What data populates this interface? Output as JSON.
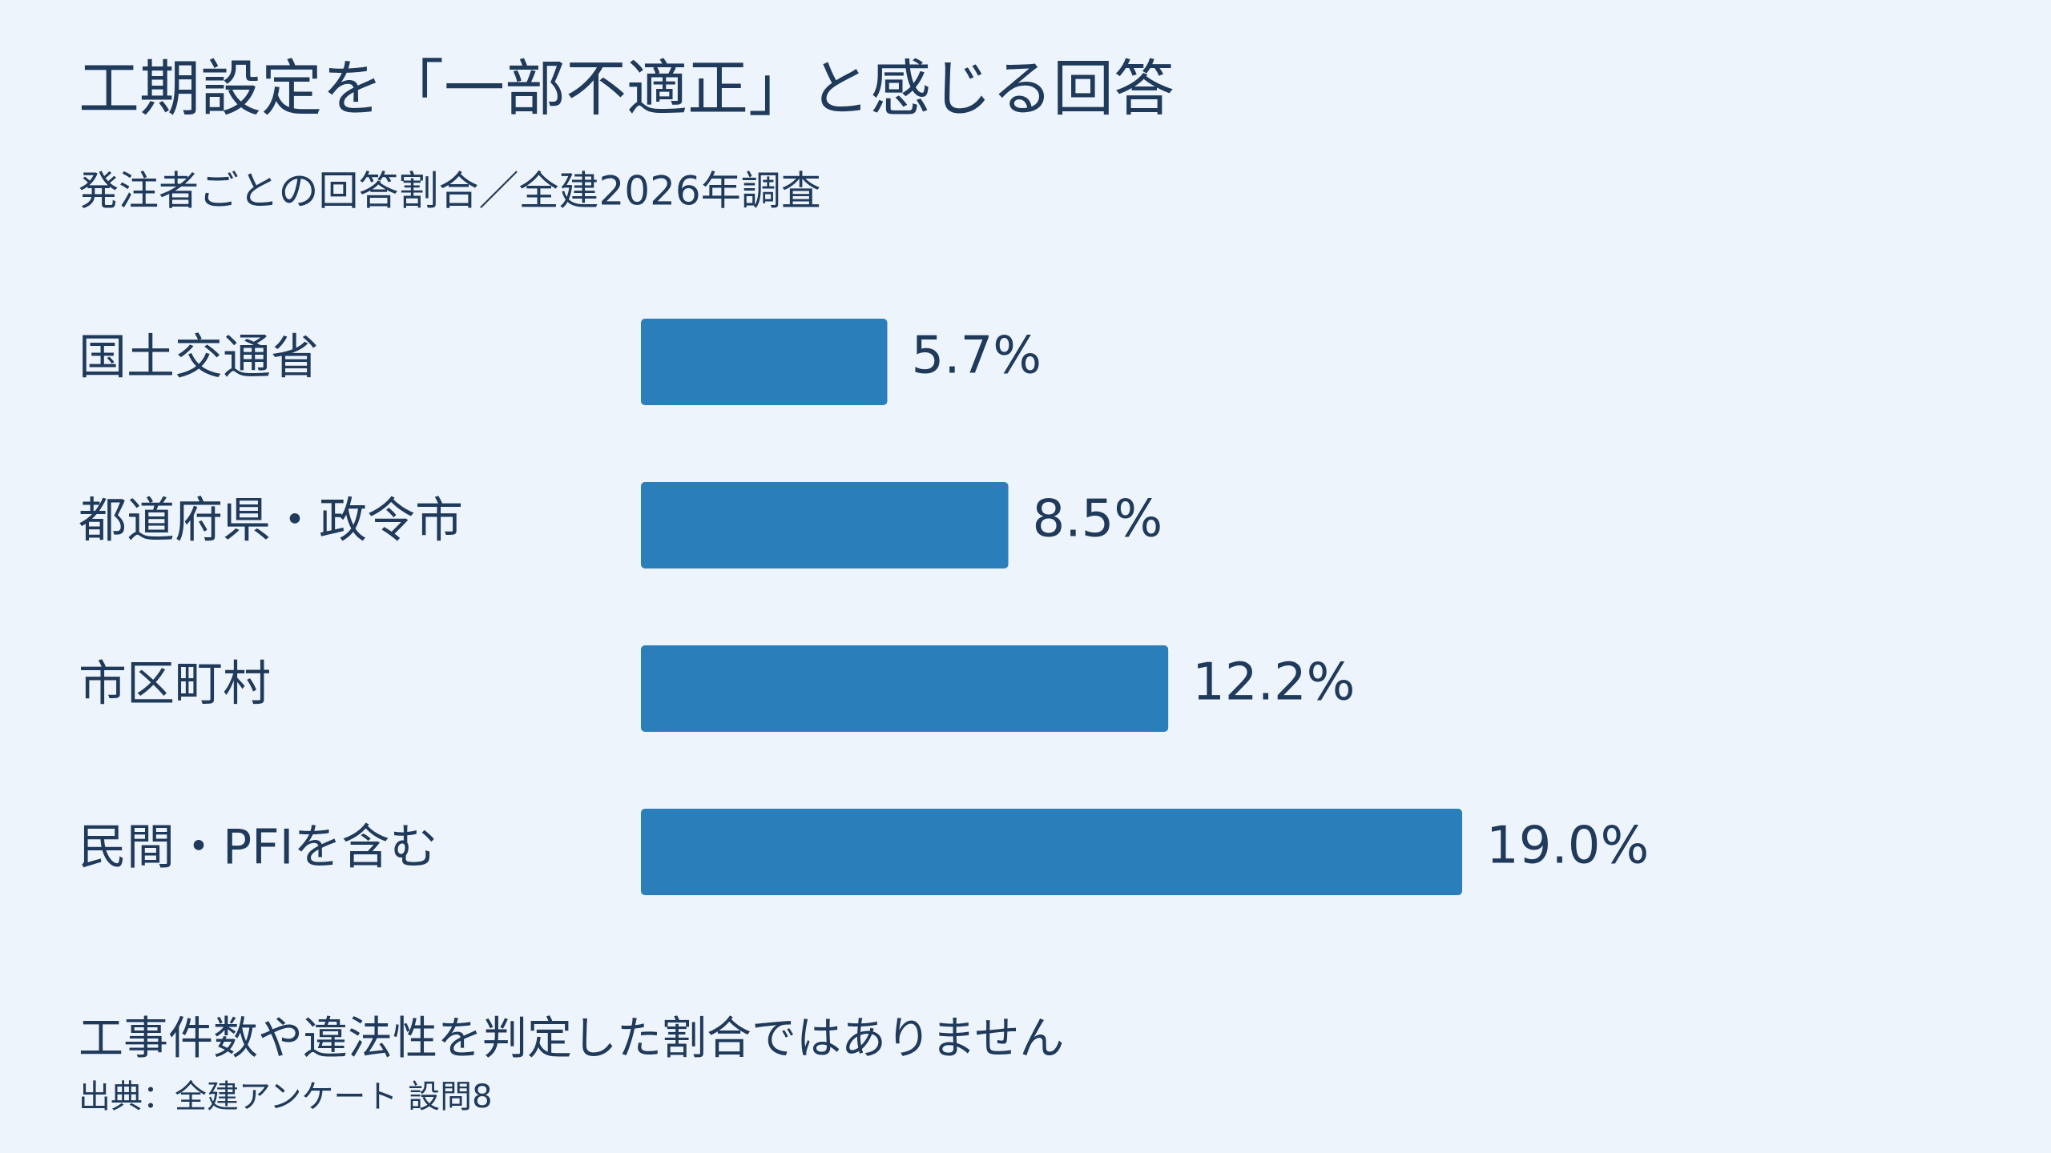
{
  "chart_data": {
    "type": "bar",
    "title": "工期設定を「一部不適正」と感じる回答",
    "subtitle": "発注者ごとの回答割合／全建2026年調査",
    "categories": [
      "国土交通省",
      "都道府県・政令市",
      "市区町村",
      "民間・PFIを含む"
    ],
    "values": [
      5.7,
      8.5,
      12.2,
      19.0
    ],
    "value_labels": [
      "5.7%",
      "8.5%",
      "12.2%",
      "19.0%"
    ],
    "color": "#2a7fbb",
    "note": "工事件数や違法性を判定した割合ではありません",
    "source": "出典：全建アンケート 設問8"
  }
}
